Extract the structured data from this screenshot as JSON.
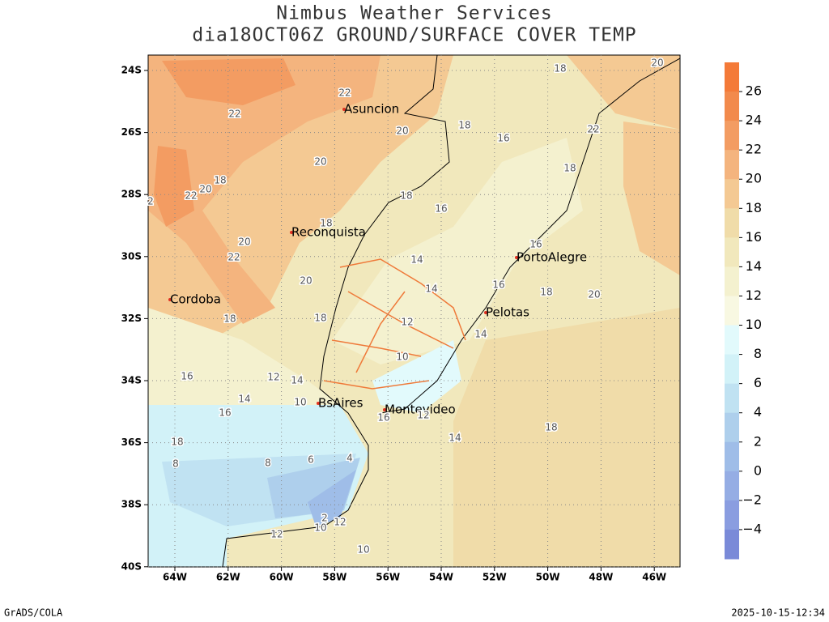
{
  "header": {
    "title": "Nimbus Weather Services",
    "subtitle": "dia18OCT06Z GROUND/SURFACE COVER TEMP"
  },
  "map": {
    "lat_labels": [
      "24S",
      "26S",
      "28S",
      "30S",
      "32S",
      "34S",
      "36S",
      "38S",
      "40S"
    ],
    "lon_labels": [
      "64W",
      "62W",
      "60W",
      "58W",
      "56W",
      "54W",
      "52W",
      "50W",
      "48W",
      "46W"
    ],
    "cities": [
      "Asuncion",
      "Reconquista",
      "Cordoba",
      "PortoAlegre",
      "Pelotas",
      "BsAires",
      "Montevideo"
    ],
    "contour_labels": [
      "18",
      "20",
      "22",
      "22",
      "20",
      "18",
      "16",
      "22",
      "20",
      "18",
      "18",
      "20",
      "22",
      "2",
      "18",
      "16",
      "18",
      "20",
      "22",
      "16",
      "14",
      "20",
      "14",
      "16",
      "18",
      "20",
      "18",
      "18",
      "12",
      "14",
      "10",
      "16",
      "12",
      "14",
      "14",
      "10",
      "16",
      "16",
      "12",
      "18",
      "14",
      "18",
      "4",
      "6",
      "8",
      "8",
      "12",
      "10",
      "12",
      "10",
      "2"
    ]
  },
  "colorbar": {
    "labels": [
      "26",
      "24",
      "22",
      "20",
      "18",
      "16",
      "14",
      "12",
      "10",
      "8",
      "6",
      "4",
      "2",
      "0",
      "−2",
      "−4"
    ],
    "colors": [
      "#f47a38",
      "#f28a4c",
      "#f39c62",
      "#f4b47e",
      "#f4c993",
      "#f0dca9",
      "#f1e8bc",
      "#f4f1cf",
      "#f8f8e2",
      "#e2fafc",
      "#d2f2f8",
      "#c0e2f2",
      "#aecfec",
      "#9fbde8",
      "#95ade4",
      "#8a9de0",
      "#7a8ad8"
    ]
  },
  "footer": {
    "left": "GrADS/COLA",
    "right": "2025-10-15-12:34"
  }
}
